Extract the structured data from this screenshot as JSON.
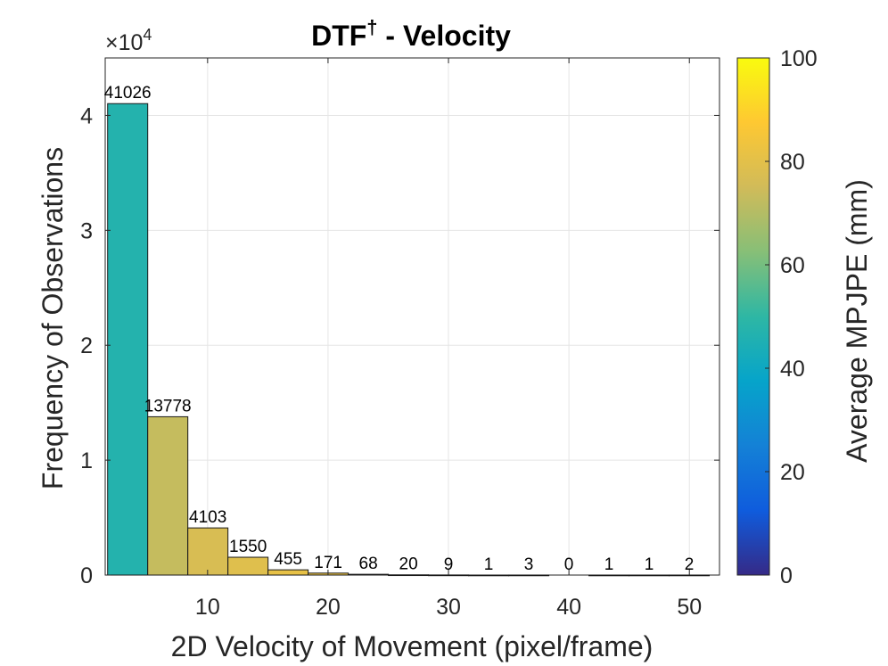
{
  "chart_data": {
    "type": "bar",
    "title": "DTF",
    "title_superscript": "†",
    "title_suffix": " - Velocity",
    "xlabel": "2D Velocity of Movement (pixel/frame)",
    "ylabel": "Frequency of Observations",
    "y_exponent_label": "×10",
    "y_exponent_power": "4",
    "y_scale": 10000,
    "xlim": [
      1.5,
      52.5
    ],
    "ylim": [
      0,
      45000
    ],
    "xticks": [
      10,
      20,
      30,
      40,
      50
    ],
    "yticks": [
      0,
      1,
      2,
      3,
      4
    ],
    "grid": true,
    "bin_width": 3.33,
    "bins": [
      {
        "x_start": 1.7,
        "x_end": 5.03,
        "count": 41026,
        "mpjpe": 47
      },
      {
        "x_start": 5.03,
        "x_end": 8.36,
        "count": 13778,
        "mpjpe": 73
      },
      {
        "x_start": 8.36,
        "x_end": 11.69,
        "count": 4103,
        "mpjpe": 77
      },
      {
        "x_start": 11.69,
        "x_end": 15.02,
        "count": 1550,
        "mpjpe": 79
      },
      {
        "x_start": 15.02,
        "x_end": 18.35,
        "count": 455,
        "mpjpe": 81
      },
      {
        "x_start": 18.35,
        "x_end": 21.68,
        "count": 171,
        "mpjpe": 82
      },
      {
        "x_start": 21.68,
        "x_end": 25.01,
        "count": 68,
        "mpjpe": 84
      },
      {
        "x_start": 25.01,
        "x_end": 28.34,
        "count": 20,
        "mpjpe": 85
      },
      {
        "x_start": 28.34,
        "x_end": 31.67,
        "count": 9,
        "mpjpe": 86
      },
      {
        "x_start": 31.67,
        "x_end": 35.0,
        "count": 1,
        "mpjpe": 80
      },
      {
        "x_start": 35.0,
        "x_end": 38.33,
        "count": 3,
        "mpjpe": 85
      },
      {
        "x_start": 38.33,
        "x_end": 41.66,
        "count": 0,
        "mpjpe": 0
      },
      {
        "x_start": 41.66,
        "x_end": 44.99,
        "count": 1,
        "mpjpe": 82
      },
      {
        "x_start": 44.99,
        "x_end": 48.32,
        "count": 1,
        "mpjpe": 84
      },
      {
        "x_start": 48.32,
        "x_end": 51.65,
        "count": 2,
        "mpjpe": 86
      }
    ],
    "colorbar": {
      "label": "Average MPJPE (mm)",
      "range": [
        0,
        100
      ],
      "ticks": [
        0,
        20,
        40,
        60,
        80,
        100
      ],
      "colormap": "parula"
    }
  }
}
